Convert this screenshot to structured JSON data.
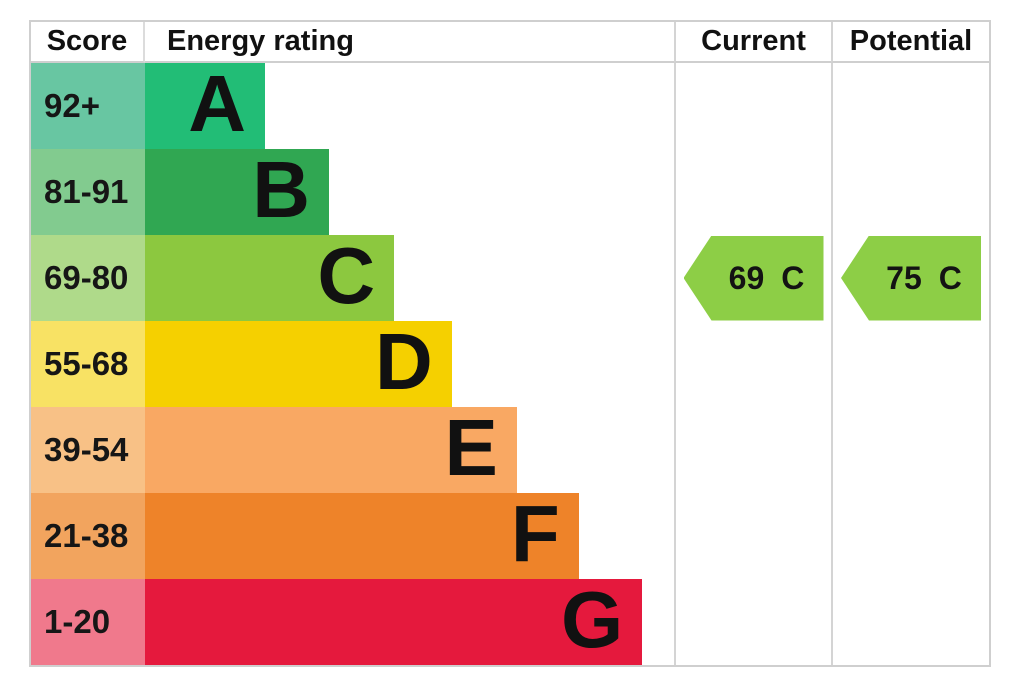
{
  "header": {
    "score": "Score",
    "energy_rating": "Energy rating",
    "current": "Current",
    "potential": "Potential"
  },
  "chart_data": {
    "type": "bar",
    "subtype": "epc_energy_rating_chart",
    "columns": [
      "Score",
      "Energy rating",
      "Current",
      "Potential"
    ],
    "bands": [
      {
        "letter": "A",
        "score_range": "92+",
        "bar_color": "#22bd76",
        "score_tint": "#68c6a2",
        "bar_width_pct": 22.7
      },
      {
        "letter": "B",
        "score_range": "81-91",
        "bar_color": "#30a752",
        "score_tint": "#82cb8f",
        "bar_width_pct": 34.8
      },
      {
        "letter": "C",
        "score_range": "69-80",
        "bar_color": "#8cc83f",
        "score_tint": "#afda8a",
        "bar_width_pct": 47.1
      },
      {
        "letter": "D",
        "score_range": "55-68",
        "bar_color": "#f5d000",
        "score_tint": "#f8e264",
        "bar_width_pct": 58.0
      },
      {
        "letter": "E",
        "score_range": "39-54",
        "bar_color": "#f9a863",
        "score_tint": "#f8c186",
        "bar_width_pct": 70.3
      },
      {
        "letter": "F",
        "score_range": "21-38",
        "bar_color": "#ee8329",
        "score_tint": "#f2a45e",
        "bar_width_pct": 82.0
      },
      {
        "letter": "G",
        "score_range": "1-20",
        "bar_color": "#e5193d",
        "score_tint": "#f0798c",
        "bar_width_pct": 94.0
      }
    ],
    "current": {
      "value": "69",
      "band": "C",
      "band_row_index": 2,
      "arrow_color": "#8dce46"
    },
    "potential": {
      "value": "75",
      "band": "C",
      "band_row_index": 2,
      "arrow_color": "#8dce46"
    }
  }
}
